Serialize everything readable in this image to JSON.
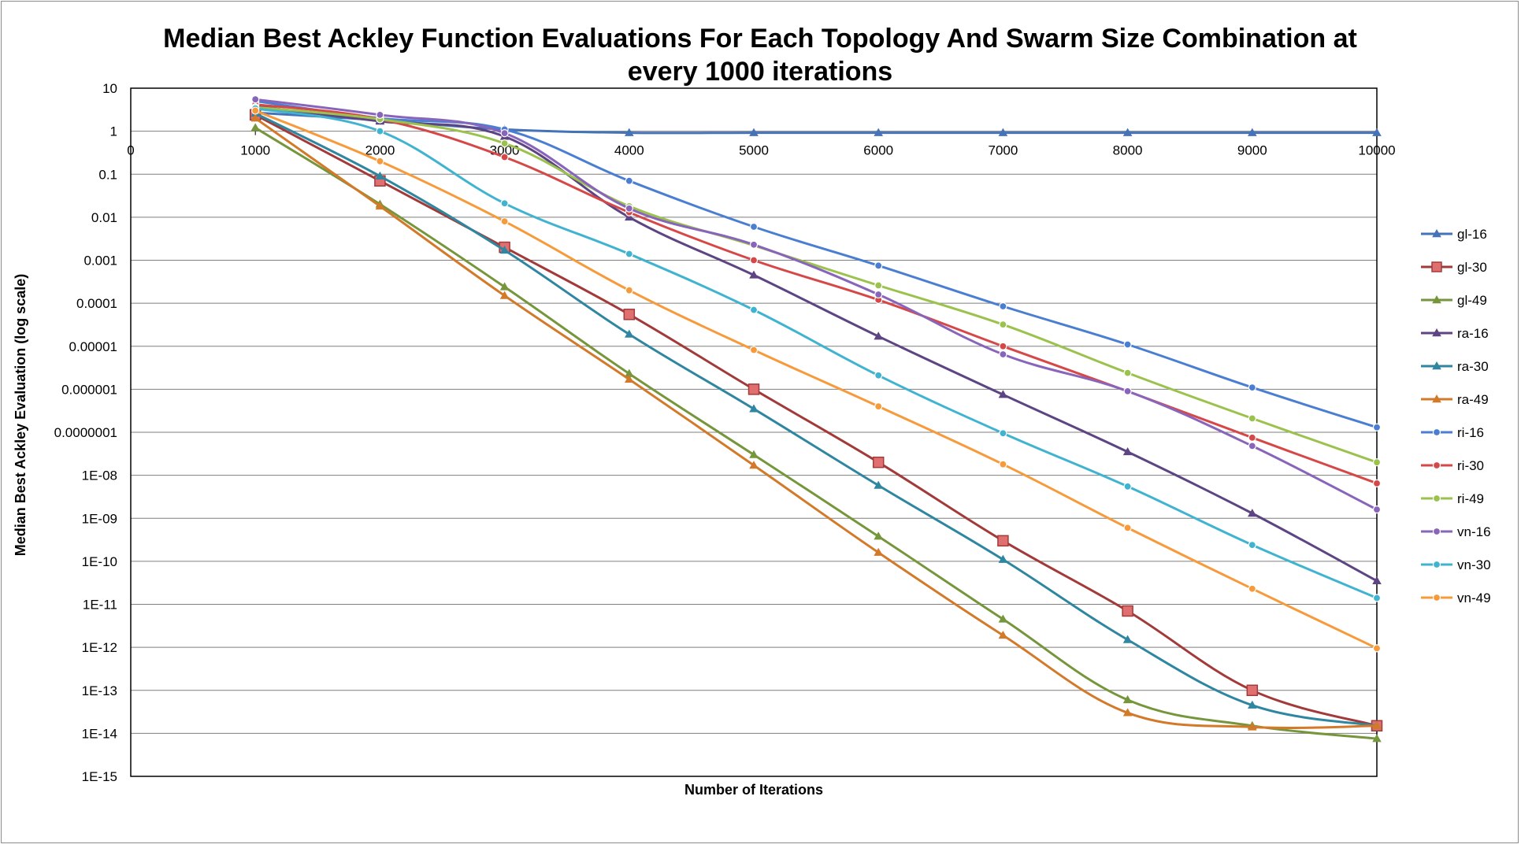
{
  "chart_data": {
    "type": "line",
    "title_line1": "Median Best Ackley Function Evaluations For Each Topology And Swarm Size Combination at",
    "title_line2": "every 1000 iterations",
    "xlabel": "Number of Iterations",
    "ylabel": "Median Best Ackley Evaluation (log scale)",
    "y_scale": "log",
    "ylim": [
      1e-15,
      10
    ],
    "xlim": [
      0,
      10000
    ],
    "grid": true,
    "legend_position": "right",
    "x_ticks": [
      "0",
      "1000",
      "2000",
      "3000",
      "4000",
      "5000",
      "6000",
      "7000",
      "8000",
      "9000",
      "10000"
    ],
    "y_ticks": [
      "10",
      "1",
      "0.1",
      "0.01",
      "0.001",
      "0.0001",
      "0.00001",
      "0.000001",
      "0.0000001",
      "1E-08",
      "1E-09",
      "1E-10",
      "1E-11",
      "1E-12",
      "1E-13",
      "1E-14",
      "1E-15"
    ],
    "x": [
      1000,
      2000,
      3000,
      4000,
      5000,
      6000,
      7000,
      8000,
      9000,
      10000
    ],
    "series": [
      {
        "name": "gl-16",
        "color": "#4573b9",
        "marker": "triangle",
        "values": [
          2.7,
          1.8,
          1.1,
          0.92,
          0.92,
          0.92,
          0.92,
          0.92,
          0.92,
          0.92
        ]
      },
      {
        "name": "gl-30",
        "color": "#a33a3a",
        "marker": "square",
        "values": [
          2.4,
          0.07,
          0.002,
          5.5e-05,
          1e-06,
          2e-08,
          3e-10,
          7e-12,
          1e-13,
          1.5e-14
        ]
      },
      {
        "name": "gl-49",
        "color": "#76963c",
        "marker": "triangle",
        "values": [
          1.2,
          0.02,
          0.00024,
          2.3e-06,
          3e-08,
          3.8e-10,
          4.5e-12,
          6e-14,
          1.5e-14,
          7.5e-15
        ]
      },
      {
        "name": "ra-16",
        "color": "#5d4482",
        "marker": "triangle",
        "values": [
          3.8,
          1.7,
          0.75,
          0.01,
          0.00045,
          1.7e-05,
          7.5e-07,
          3.5e-08,
          1.3e-09,
          3.5e-11
        ]
      },
      {
        "name": "ra-30",
        "color": "#2f86a0",
        "marker": "triangle",
        "values": [
          2.6,
          0.09,
          0.0017,
          1.9e-05,
          3.5e-07,
          5.8e-09,
          1.1e-10,
          1.5e-12,
          4.5e-14,
          1.5e-14
        ]
      },
      {
        "name": "ra-49",
        "color": "#d37a2a",
        "marker": "triangle",
        "values": [
          2.0,
          0.018,
          0.00015,
          1.7e-06,
          1.7e-08,
          1.6e-10,
          1.9e-12,
          3e-14,
          1.4e-14,
          1.5e-14
        ]
      },
      {
        "name": "ri-16",
        "color": "#4a7ed2",
        "marker": "circle",
        "values": [
          5.0,
          2.0,
          1.1,
          0.07,
          0.006,
          0.00075,
          8.5e-05,
          1.1e-05,
          1.1e-06,
          1.3e-07
        ]
      },
      {
        "name": "ri-30",
        "color": "#d64848",
        "marker": "circle",
        "values": [
          4.2,
          1.9,
          0.25,
          0.013,
          0.001,
          0.00012,
          1e-05,
          9e-07,
          7.5e-08,
          6.5e-09
        ]
      },
      {
        "name": "ri-49",
        "color": "#9bc24d",
        "marker": "circle",
        "values": [
          3.6,
          1.9,
          0.52,
          0.018,
          0.0022,
          0.00026,
          3.2e-05,
          2.4e-06,
          2.1e-07,
          2e-08
        ]
      },
      {
        "name": "vn-16",
        "color": "#8864bb",
        "marker": "circle",
        "values": [
          5.5,
          2.4,
          0.9,
          0.016,
          0.0023,
          0.00016,
          6.5e-06,
          9e-07,
          4.8e-08,
          1.6e-09
        ]
      },
      {
        "name": "vn-30",
        "color": "#40b3d0",
        "marker": "circle",
        "values": [
          3.4,
          1.0,
          0.021,
          0.0014,
          7e-05,
          2.1e-06,
          9.5e-08,
          5.5e-09,
          2.4e-10,
          1.4e-11
        ]
      },
      {
        "name": "vn-49",
        "color": "#f79a3b",
        "marker": "circle",
        "values": [
          3.0,
          0.2,
          0.008,
          0.0002,
          8.2e-06,
          4e-07,
          1.8e-08,
          6e-10,
          2.3e-11,
          9.5e-13
        ]
      }
    ]
  }
}
